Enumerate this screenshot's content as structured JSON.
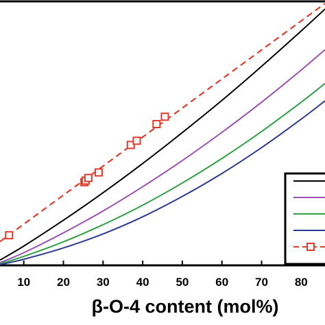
{
  "chart_data": {
    "type": "line",
    "xlabel": "β-O-4 content (mol%)",
    "x_ticks": [
      10,
      20,
      30,
      40,
      50,
      60,
      70,
      80
    ],
    "xlim": [
      4,
      86
    ],
    "ylim": [
      0,
      100
    ],
    "grid": false,
    "legend_position": "right",
    "series": [
      {
        "color": "#000000",
        "style": "solid",
        "x": [
          4,
          10,
          20,
          30,
          40,
          50,
          60,
          70,
          80,
          86
        ],
        "y": [
          2,
          7.3,
          17.1,
          27.5,
          38.6,
          50.3,
          62.5,
          75.4,
          88.8,
          97.1
        ]
      },
      {
        "color": "#9b4fb0",
        "style": "solid",
        "x": [
          4,
          10,
          20,
          30,
          40,
          50,
          60,
          70,
          80,
          86
        ],
        "y": [
          1,
          4.8,
          12.3,
          20.6,
          29.8,
          39.7,
          50.4,
          61.8,
          74.0,
          81.7
        ]
      },
      {
        "color": "#2ea043",
        "style": "solid",
        "x": [
          4,
          10,
          20,
          30,
          40,
          50,
          60,
          70,
          80,
          86
        ],
        "y": [
          0.6,
          3.4,
          8.9,
          15.4,
          22.8,
          31.2,
          40.5,
          50.7,
          61.8,
          68.9
        ]
      },
      {
        "color": "#2b3a8f",
        "style": "solid",
        "x": [
          4,
          10,
          20,
          30,
          40,
          50,
          60,
          70,
          80,
          86
        ],
        "y": [
          0.3,
          2.3,
          6.6,
          11.9,
          18.4,
          26.1,
          34.8,
          44.6,
          55.4,
          62.3
        ]
      },
      {
        "color": "#e03a2a",
        "style": "dashed",
        "marker": "square",
        "x": [
          6.3,
          25.3,
          25.6,
          26.3,
          28.9,
          37.0,
          38.5,
          43.5,
          45.6
        ],
        "y": [
          11.4,
          31.5,
          32.1,
          33.1,
          35.2,
          45.6,
          47.2,
          53.5,
          56.3
        ],
        "line_x": [
          4,
          86
        ],
        "line_y": [
          9.0,
          99.2
        ]
      }
    ]
  }
}
